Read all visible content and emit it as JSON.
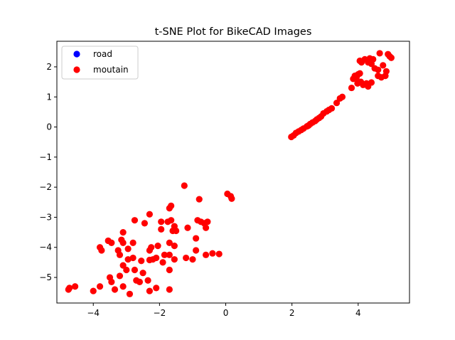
{
  "chart_data": {
    "type": "scatter",
    "title": "t-SNE Plot for BikeCAD Images",
    "xlabel": "",
    "ylabel": "",
    "xlim": [
      -5.1,
      5.55
    ],
    "ylim": [
      -5.85,
      2.85
    ],
    "x_ticks": [
      -4,
      -2,
      0,
      2,
      4
    ],
    "y_ticks": [
      2,
      1,
      0,
      -1,
      -2,
      -3,
      -4,
      -5
    ],
    "x_tick_labels": [
      "−4",
      "−2",
      "0",
      "2",
      "4"
    ],
    "y_tick_labels": [
      "2",
      "1",
      "0",
      "−1",
      "−2",
      "−3",
      "−4",
      "−5"
    ],
    "grid": false,
    "legend_position": "upper-left",
    "series": [
      {
        "name": "road",
        "color": "#0000ff",
        "points": []
      },
      {
        "name": "moutain",
        "color": "#ff0000",
        "points": [
          [
            -4.75,
            -5.4
          ],
          [
            -4.72,
            -5.35
          ],
          [
            -4.55,
            -5.3
          ],
          [
            -4.0,
            -5.45
          ],
          [
            -3.8,
            -5.3
          ],
          [
            -3.5,
            -5.0
          ],
          [
            -3.45,
            -5.15
          ],
          [
            -3.35,
            -5.4
          ],
          [
            -3.1,
            -5.3
          ],
          [
            -2.9,
            -5.55
          ],
          [
            -2.6,
            -5.15
          ],
          [
            -2.35,
            -5.1
          ],
          [
            -2.3,
            -5.45
          ],
          [
            -2.1,
            -5.35
          ],
          [
            -1.7,
            -5.4
          ],
          [
            -3.2,
            -4.95
          ],
          [
            -3.0,
            -4.75
          ],
          [
            -2.75,
            -4.75
          ],
          [
            -2.5,
            -4.85
          ],
          [
            -2.7,
            -5.1
          ],
          [
            -3.1,
            -4.6
          ],
          [
            -2.95,
            -4.4
          ],
          [
            -2.8,
            -4.35
          ],
          [
            -2.55,
            -4.45
          ],
          [
            -2.3,
            -4.42
          ],
          [
            -2.2,
            -4.4
          ],
          [
            -2.1,
            -4.35
          ],
          [
            -1.9,
            -4.5
          ],
          [
            -1.7,
            -4.75
          ],
          [
            -1.55,
            -4.4
          ],
          [
            -1.2,
            -4.35
          ],
          [
            -1.0,
            -4.4
          ],
          [
            -0.9,
            -4.1
          ],
          [
            -0.6,
            -4.25
          ],
          [
            -0.4,
            -4.2
          ],
          [
            -0.2,
            -4.22
          ],
          [
            -3.8,
            -4.0
          ],
          [
            -3.75,
            -4.1
          ],
          [
            -3.55,
            -3.78
          ],
          [
            -3.45,
            -3.85
          ],
          [
            -3.25,
            -4.1
          ],
          [
            -3.2,
            -4.25
          ],
          [
            -3.15,
            -3.75
          ],
          [
            -3.1,
            -3.85
          ],
          [
            -2.95,
            -4.05
          ],
          [
            -2.8,
            -3.85
          ],
          [
            -2.3,
            -4.1
          ],
          [
            -2.25,
            -4.0
          ],
          [
            -2.05,
            -3.95
          ],
          [
            -1.85,
            -4.25
          ],
          [
            -1.7,
            -4.25
          ],
          [
            -1.7,
            -3.85
          ],
          [
            -1.55,
            -3.95
          ],
          [
            -3.1,
            -3.5
          ],
          [
            -2.75,
            -3.1
          ],
          [
            -2.45,
            -3.2
          ],
          [
            -2.3,
            -2.9
          ],
          [
            -1.95,
            -3.15
          ],
          [
            -1.95,
            -3.4
          ],
          [
            -1.75,
            -3.15
          ],
          [
            -1.65,
            -3.1
          ],
          [
            -1.6,
            -3.45
          ],
          [
            -1.55,
            -3.3
          ],
          [
            -1.5,
            -3.45
          ],
          [
            -1.15,
            -3.35
          ],
          [
            -0.85,
            -3.1
          ],
          [
            -0.75,
            -3.15
          ],
          [
            -0.65,
            -3.2
          ],
          [
            -0.55,
            -3.15
          ],
          [
            -0.6,
            -3.35
          ],
          [
            -0.9,
            -3.7
          ],
          [
            -1.7,
            -2.7
          ],
          [
            -1.65,
            -2.62
          ],
          [
            -0.8,
            -2.4
          ],
          [
            -1.25,
            -1.95
          ],
          [
            0.05,
            -2.22
          ],
          [
            0.15,
            -2.3
          ],
          [
            0.18,
            -2.38
          ],
          [
            1.98,
            -0.33
          ],
          [
            2.05,
            -0.28
          ],
          [
            2.12,
            -0.2
          ],
          [
            2.2,
            -0.15
          ],
          [
            2.28,
            -0.1
          ],
          [
            2.35,
            -0.05
          ],
          [
            2.45,
            0.02
          ],
          [
            2.5,
            0.05
          ],
          [
            2.55,
            0.1
          ],
          [
            2.62,
            0.15
          ],
          [
            2.7,
            0.2
          ],
          [
            2.75,
            0.25
          ],
          [
            2.82,
            0.3
          ],
          [
            2.88,
            0.35
          ],
          [
            2.95,
            0.45
          ],
          [
            3.05,
            0.52
          ],
          [
            3.12,
            0.57
          ],
          [
            3.2,
            0.62
          ],
          [
            3.35,
            0.8
          ],
          [
            3.45,
            0.95
          ],
          [
            3.52,
            1.0
          ],
          [
            3.8,
            1.3
          ],
          [
            3.85,
            1.6
          ],
          [
            3.9,
            1.7
          ],
          [
            3.95,
            1.65
          ],
          [
            4.0,
            1.75
          ],
          [
            4.05,
            1.78
          ],
          [
            3.98,
            1.45
          ],
          [
            4.08,
            1.5
          ],
          [
            4.15,
            1.4
          ],
          [
            4.25,
            1.45
          ],
          [
            4.3,
            1.35
          ],
          [
            4.4,
            1.48
          ],
          [
            4.6,
            1.7
          ],
          [
            4.7,
            1.65
          ],
          [
            4.82,
            1.7
          ],
          [
            4.85,
            1.85
          ],
          [
            4.75,
            2.05
          ],
          [
            4.6,
            1.9
          ],
          [
            4.5,
            1.95
          ],
          [
            4.4,
            2.1
          ],
          [
            4.3,
            2.15
          ],
          [
            4.2,
            2.25
          ],
          [
            4.1,
            2.15
          ],
          [
            4.05,
            2.2
          ],
          [
            4.35,
            2.28
          ],
          [
            4.45,
            2.25
          ],
          [
            4.65,
            2.45
          ],
          [
            4.9,
            2.42
          ],
          [
            4.95,
            2.35
          ],
          [
            5.0,
            2.3
          ]
        ]
      }
    ]
  }
}
